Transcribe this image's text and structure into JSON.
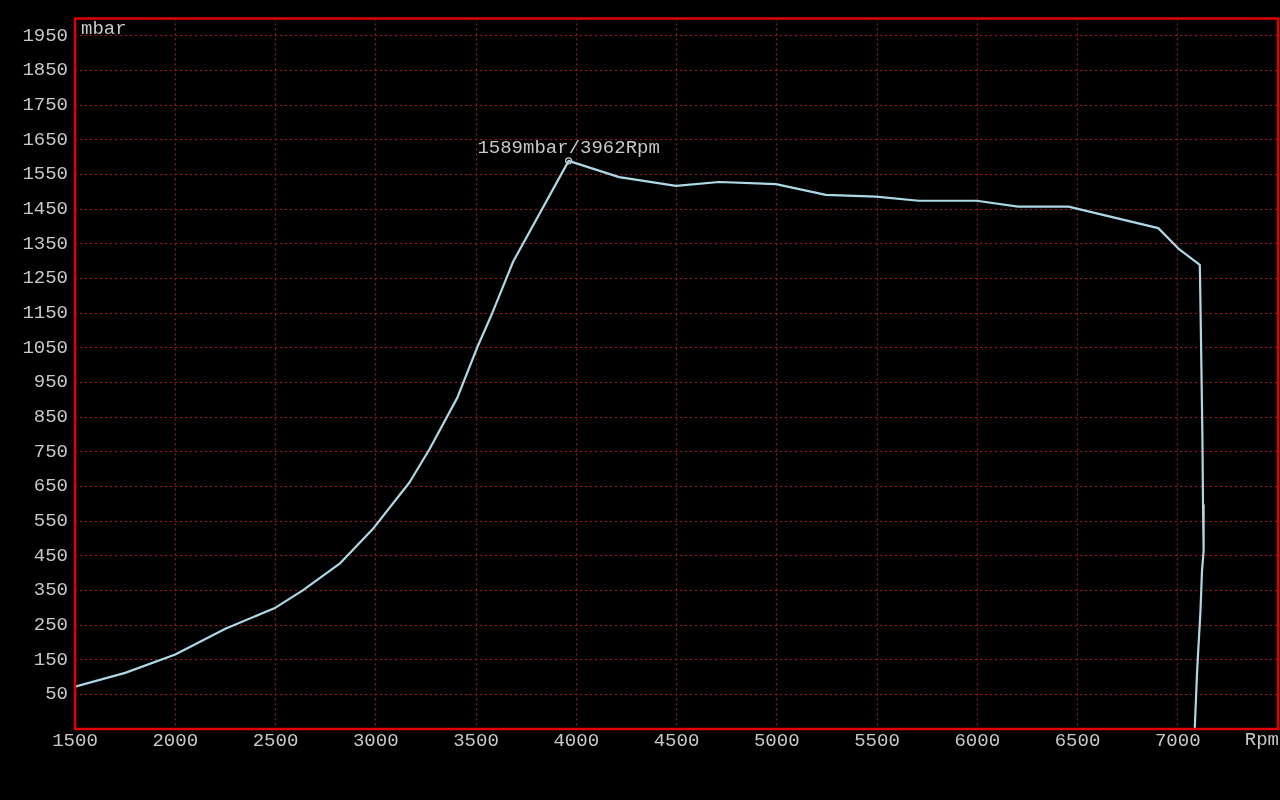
{
  "chart_data": {
    "type": "line",
    "xlabel": "Rpm",
    "ylabel": "mbar",
    "x": [
      1500,
      1750,
      2000,
      2250,
      2500,
      2636,
      2820,
      2984,
      3168,
      3268,
      3407,
      3507,
      3582,
      3685,
      3962,
      4214,
      4498,
      4712,
      4996,
      5245,
      5494,
      5708,
      5997,
      6206,
      6455,
      6903,
      7003,
      7110,
      7113,
      7118,
      7123,
      7126,
      7129,
      7121,
      7113,
      7101,
      7096,
      7088,
      7085
    ],
    "values": [
      72,
      112,
      165,
      239,
      300,
      350,
      427,
      526,
      661,
      757,
      906,
      1052,
      1151,
      1298,
      1589,
      1542,
      1517,
      1528,
      1522,
      1491,
      1486,
      1474,
      1474,
      1457,
      1457,
      1395,
      1336,
      1289,
      1187,
      990,
      793,
      596,
      464,
      407,
      286,
      165,
      109,
      -3,
      -46
    ],
    "color": "#add8e6",
    "marker": "none",
    "xlim": [
      1500,
      7500
    ],
    "xticks": [
      1500,
      2000,
      2500,
      3000,
      3500,
      4000,
      4500,
      5000,
      5500,
      6000,
      6500,
      7000
    ],
    "ylim": [
      -50,
      2000
    ],
    "yticks": [
      50,
      150,
      250,
      350,
      450,
      550,
      650,
      750,
      850,
      950,
      1050,
      1150,
      1250,
      1350,
      1450,
      1550,
      1650,
      1750,
      1850,
      1950
    ],
    "grid": true,
    "annotations": [
      {
        "text": "1589mbar/3962Rpm",
        "x": 3962,
        "y": 1589
      }
    ]
  }
}
